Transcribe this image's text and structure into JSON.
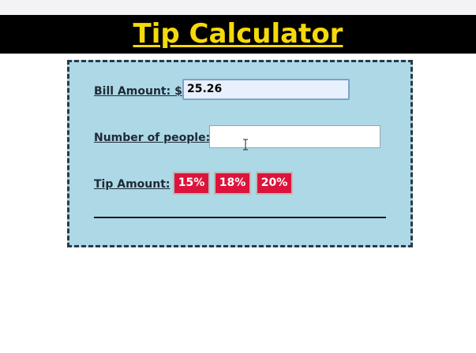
{
  "header": {
    "title": "Tip Calculator"
  },
  "form": {
    "bill_label": "Bill Amount: $",
    "bill_value": "25.26",
    "people_label": "Number of people:",
    "people_value": "",
    "tip_label": "Tip Amount:",
    "tip_options": [
      "15%",
      "18%",
      "20%"
    ]
  },
  "colors": {
    "title": "#f5d90a",
    "header_background": "#000000",
    "panel_background": "#add8e6",
    "tip_button": "#dc143c"
  },
  "icons": {
    "cursor": "text-cursor-icon"
  }
}
